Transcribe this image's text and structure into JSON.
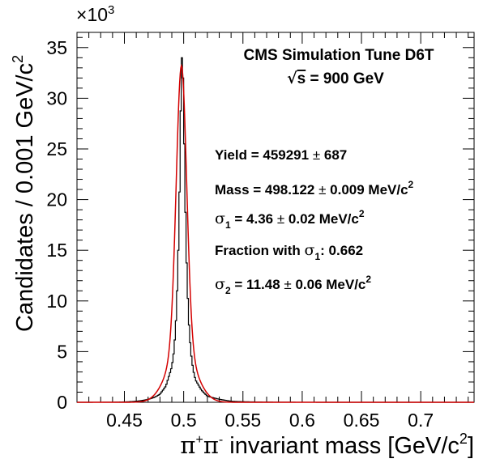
{
  "chart_data": {
    "type": "line",
    "xlabel_parts": {
      "pi": "π",
      "plus": "+",
      "pi2": "π",
      "minus": "-",
      "rest": " invariant mass [GeV/c",
      "sup": "2",
      "close": "]"
    },
    "ylabel_parts": {
      "main": "Candidates / 0.001 GeV/c",
      "sup": "2"
    },
    "y_multiplier": {
      "times": "×",
      "base": "10",
      "exp": "3"
    },
    "xlim": [
      0.41,
      0.745
    ],
    "ylim": [
      0,
      36.5
    ],
    "x_ticks": [
      0.45,
      0.5,
      0.55,
      0.6,
      0.65,
      0.7
    ],
    "x_tick_labels": [
      "0.45",
      "0.5",
      "0.55",
      "0.6",
      "0.65",
      "0.7"
    ],
    "y_ticks": [
      0,
      5,
      10,
      15,
      20,
      25,
      30,
      35
    ],
    "y_tick_labels": [
      "0",
      "5",
      "10",
      "15",
      "20",
      "25",
      "30",
      "35"
    ],
    "series": [
      {
        "kind": "histogram",
        "color": "#000000",
        "x": [
          0.48,
          0.485,
          0.49,
          0.492,
          0.494,
          0.496,
          0.497,
          0.498,
          0.499,
          0.5,
          0.501,
          0.502,
          0.504,
          0.506,
          0.508,
          0.51,
          0.515,
          0.52,
          0.53,
          0.54
        ],
        "y": [
          0.8,
          1.6,
          3.5,
          5.2,
          9.0,
          17.0,
          24.5,
          33.0,
          35.0,
          29.0,
          22.0,
          15.5,
          8.5,
          5.0,
          3.2,
          2.2,
          1.2,
          0.6,
          0.3,
          0.1
        ]
      },
      {
        "kind": "fit",
        "color": "#d40000",
        "yield": 459291,
        "mean": 0.498122,
        "sigma1": 0.00436,
        "sigma2": 0.01148,
        "fraction1": 0.662,
        "bin_width": 0.001
      }
    ]
  },
  "annotations": {
    "title": "CMS Simulation Tune D6T",
    "energy": {
      "sqrt": "√",
      "s": "s",
      "value": " = 900 GeV"
    },
    "yield": {
      "label": "Yield = 459291",
      "pm": " ± ",
      "err": "687"
    },
    "mass": {
      "label": "Mass = 498.122",
      "pm": " ± ",
      "err": "0.009 MeV/c",
      "sup": "2"
    },
    "sigma1": {
      "sym": "σ",
      "sub": "1",
      "eq": " = 4.36",
      "pm": " ± ",
      "err": "0.02 MeV/c",
      "sup": "2"
    },
    "fraction": {
      "label": "Fraction with ",
      "sym": "σ",
      "sub": "1",
      "value": ": 0.662"
    },
    "sigma2": {
      "sym": "σ",
      "sub": "2",
      "eq": " = 11.48",
      "pm": " ± ",
      "err": "0.06 MeV/c",
      "sup": "2"
    }
  }
}
